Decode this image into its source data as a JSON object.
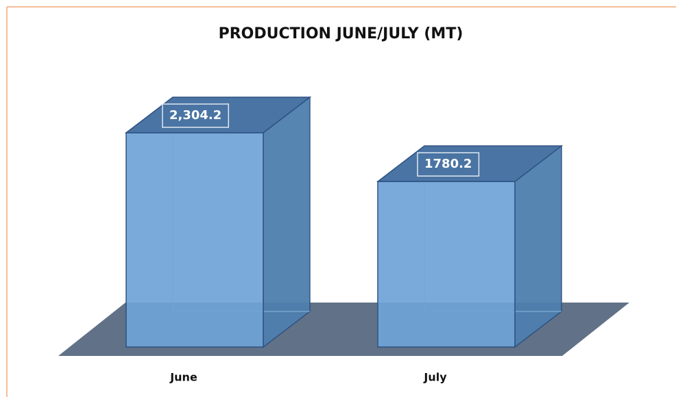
{
  "chart_data": {
    "type": "bar3d",
    "title": "PRODUCTION JUNE/JULY (MT)",
    "categories": [
      "June",
      "July"
    ],
    "values": [
      2304.2,
      1780.2
    ],
    "value_labels": [
      "2,304.2",
      "1780.2"
    ],
    "color": "#6fa3d6"
  }
}
